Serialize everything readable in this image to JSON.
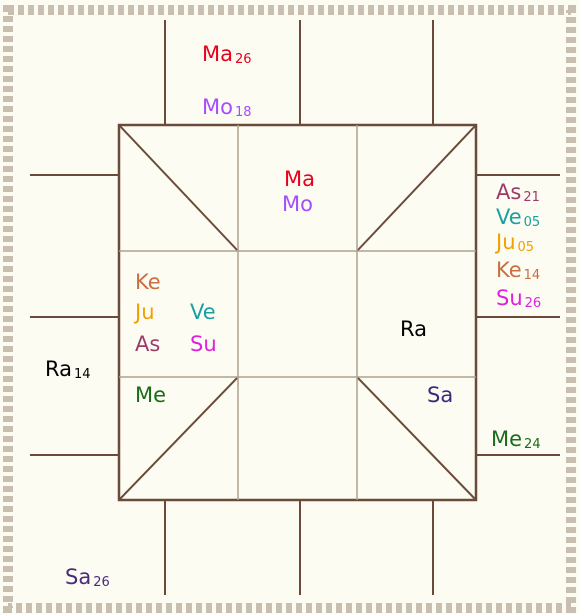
{
  "outer": [
    {
      "planet": "Ma",
      "degree": "26",
      "color": "#e8001c"
    },
    {
      "planet": "Mo",
      "degree": "18",
      "color": "#a64dff"
    },
    {
      "planet": "As",
      "degree": "21",
      "color": "#9b3b6b"
    },
    {
      "planet": "Ve",
      "degree": "05",
      "color": "#1aa0a0"
    },
    {
      "planet": "Ju",
      "degree": "05",
      "color": "#f0a000"
    },
    {
      "planet": "Ke",
      "degree": "14",
      "color": "#c87040"
    },
    {
      "planet": "Su",
      "degree": "26",
      "color": "#e020e0"
    },
    {
      "planet": "Me",
      "degree": "24",
      "color": "#1a6b1a"
    },
    {
      "planet": "Ra",
      "degree": "14",
      "color": "#000000"
    },
    {
      "planet": "Sa",
      "degree": "26",
      "color": "#4b2a7a"
    }
  ],
  "inner": [
    {
      "planet": "Ma",
      "color": "#e8001c"
    },
    {
      "planet": "Mo",
      "color": "#a64dff"
    },
    {
      "planet": "Ke",
      "color": "#c87040"
    },
    {
      "planet": "Ju",
      "color": "#f0a000"
    },
    {
      "planet": "Ve",
      "color": "#1aa0a0"
    },
    {
      "planet": "As",
      "color": "#9b3b6b"
    },
    {
      "planet": "Su",
      "color": "#e020e0"
    },
    {
      "planet": "Ra",
      "color": "#000000"
    },
    {
      "planet": "Me",
      "color": "#1a6b1a"
    },
    {
      "planet": "Sa",
      "color": "#3a2a7a"
    }
  ]
}
